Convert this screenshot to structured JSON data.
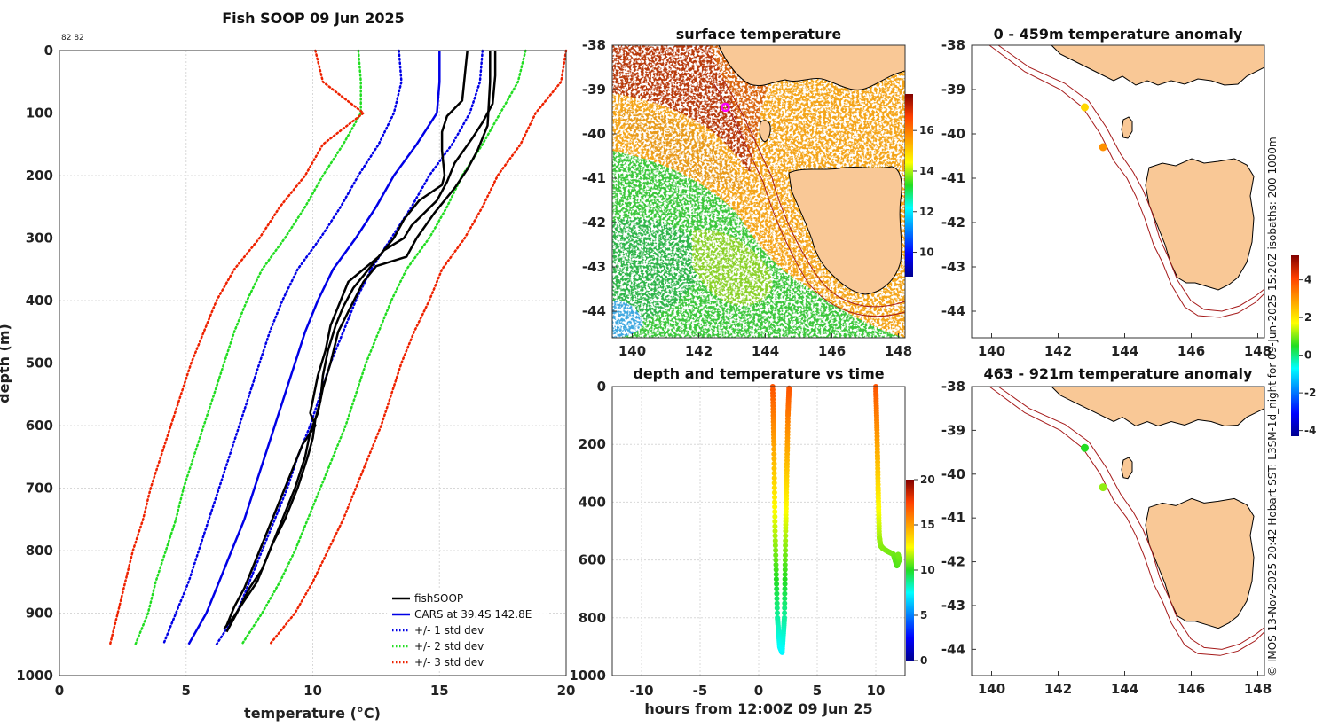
{
  "side_text": "© IMOS 13-Nov-2025 20:42 Hobart SST: L3SM-1d_night for 09-Jun-2025 15:20Z isobaths: 200  1000m",
  "chart_data": [
    {
      "id": "profile",
      "type": "line",
      "title": "Fish SOOP 09 Jun 2025",
      "annotation": "82 82",
      "xlabel": "temperature (°C)",
      "ylabel": "depth (m)",
      "xlim": [
        0,
        20
      ],
      "ylim": [
        0,
        1000
      ],
      "y_reversed": true,
      "x_ticks": [
        "0",
        "5",
        "10",
        "15",
        "20"
      ],
      "y_ticks": [
        "0",
        "100",
        "200",
        "300",
        "400",
        "500",
        "600",
        "700",
        "800",
        "900",
        "1000"
      ],
      "legend_position": "bottom-right",
      "depth": [
        0,
        50,
        100,
        150,
        200,
        250,
        300,
        350,
        400,
        450,
        500,
        550,
        600,
        650,
        700,
        750,
        800,
        850,
        900,
        950
      ],
      "series": [
        {
          "name": "CARS at 39.4S 142.8E",
          "legend": "CARS at 39.4S 142.8E",
          "color": "#0000e6",
          "style": "solid",
          "values": [
            15.0,
            15.0,
            14.9,
            14.1,
            13.2,
            12.5,
            11.7,
            10.8,
            10.2,
            9.7,
            9.3,
            8.9,
            8.5,
            8.1,
            7.7,
            7.3,
            6.8,
            6.3,
            5.8,
            5.1
          ]
        },
        {
          "name": "+1 std dev",
          "legend": "+/- 1 std dev",
          "color": "#0000e6",
          "style": "dotted",
          "values": [
            16.7,
            16.6,
            16.2,
            15.5,
            14.6,
            13.9,
            13.1,
            12.3,
            11.7,
            11.2,
            10.7,
            10.3,
            9.9,
            9.4,
            9.0,
            8.5,
            8.0,
            7.5,
            7.0,
            6.2
          ]
        },
        {
          "name": "-1 std dev",
          "legend": "",
          "color": "#0000e6",
          "style": "dotted",
          "values": [
            13.4,
            13.5,
            13.2,
            12.6,
            11.8,
            11.1,
            10.3,
            9.4,
            8.8,
            8.3,
            7.9,
            7.5,
            7.1,
            6.7,
            6.3,
            5.9,
            5.5,
            5.1,
            4.6,
            4.1
          ]
        },
        {
          "name": "+2 std dev",
          "legend": "+/- 2 std dev",
          "color": "#22dd22",
          "style": "dotted",
          "values": [
            18.4,
            18.1,
            17.4,
            16.7,
            15.9,
            15.3,
            14.6,
            13.7,
            13.1,
            12.6,
            12.1,
            11.7,
            11.3,
            10.8,
            10.3,
            9.8,
            9.3,
            8.7,
            8.0,
            7.2
          ]
        },
        {
          "name": "-2 std dev",
          "legend": "",
          "color": "#22dd22",
          "style": "dotted",
          "values": [
            11.8,
            11.9,
            11.9,
            11.2,
            10.4,
            9.7,
            8.9,
            8.0,
            7.4,
            6.9,
            6.5,
            6.1,
            5.7,
            5.3,
            4.9,
            4.6,
            4.2,
            3.8,
            3.5,
            3.0
          ]
        },
        {
          "name": "+3 std dev",
          "legend": "+/- 3 std dev",
          "color": "#ee2200",
          "style": "dotted",
          "values": [
            20.0,
            19.8,
            18.8,
            18.2,
            17.3,
            16.7,
            16.0,
            15.1,
            14.6,
            14.0,
            13.5,
            13.1,
            12.7,
            12.2,
            11.7,
            11.2,
            10.6,
            10.0,
            9.3,
            8.3
          ]
        },
        {
          "name": "-3 std dev",
          "legend": "",
          "color": "#ee2200",
          "style": "dotted",
          "values": [
            10.1,
            10.4,
            12.0,
            10.4,
            9.7,
            8.7,
            7.9,
            6.9,
            6.2,
            5.7,
            5.2,
            4.8,
            4.4,
            4.0,
            3.6,
            3.3,
            2.9,
            2.6,
            2.3,
            2.0
          ]
        }
      ],
      "fishsoop": {
        "name": "fishSOOP",
        "legend": "fishSOOP",
        "color": "#000000",
        "casts": [
          {
            "t": [
              16.1,
              16.0,
              15.9,
              15.3,
              15.1,
              15.1,
              15.2,
              15.1,
              14.2,
              13.6,
              13.2,
              12.6,
              11.4,
              11.1,
              10.7,
              10.5,
              10.2,
              10.0,
              9.9,
              10.1,
              9.6,
              9.1,
              8.6,
              8.1,
              7.7,
              7.3,
              6.9,
              6.6
            ],
            "d": [
              0,
              40,
              80,
              105,
              130,
              160,
              200,
              215,
              240,
              270,
              300,
              330,
              370,
              400,
              440,
              480,
              520,
              560,
              580,
              600,
              630,
              680,
              730,
              780,
              820,
              860,
              890,
              920
            ]
          },
          {
            "t": [
              17.2,
              17.2,
              17.1,
              16.7,
              16.3,
              15.6,
              15.3,
              14.9,
              13.9,
              13.6,
              12.8,
              12.2,
              11.6,
              11.2,
              10.9,
              10.6,
              10.4,
              10.3,
              10.1,
              10.0,
              9.8,
              9.4,
              8.9,
              8.4,
              8.0,
              7.5,
              7.0,
              6.6
            ],
            "d": [
              0,
              40,
              85,
              115,
              140,
              180,
              210,
              240,
              280,
              300,
              320,
              350,
              380,
              410,
              440,
              480,
              520,
              560,
              590,
              620,
              650,
              700,
              750,
              790,
              830,
              860,
              900,
              930
            ]
          },
          {
            "t": [
              17.0,
              17.0,
              16.9,
              16.5,
              16.1,
              15.6,
              14.8,
              14.1,
              13.7,
              12.5,
              12.0,
              11.5,
              11.0,
              10.7,
              10.4,
              10.2,
              9.9,
              9.7,
              9.3,
              8.8,
              8.3,
              7.8,
              7.3,
              6.9,
              6.5
            ],
            "d": [
              0,
              50,
              120,
              160,
              190,
              220,
              260,
              300,
              330,
              345,
              370,
              410,
              450,
              500,
              540,
              580,
              610,
              650,
              700,
              750,
              800,
              850,
              880,
              905,
              925
            ]
          }
        ]
      }
    },
    {
      "id": "sst",
      "type": "heatmap",
      "title": "surface temperature",
      "xlim": [
        139.4,
        148.2
      ],
      "ylim": [
        -44.6,
        -38
      ],
      "x_ticks": [
        "140",
        "142",
        "144",
        "146",
        "148"
      ],
      "y_ticks": [
        "-38",
        "-39",
        "-40",
        "-41",
        "-42",
        "-43",
        "-44"
      ],
      "colorbar_range": [
        8.8,
        17.8
      ],
      "colorbar_ticks": [
        "10",
        "12",
        "14",
        "16"
      ],
      "position_marker": [
        142.8,
        -39.4
      ]
    },
    {
      "id": "timeseries",
      "type": "scatter",
      "title": "depth and temperature vs time",
      "xlabel": "hours from 12:00Z 09 Jun 25",
      "xlim": [
        -12.5,
        12.5
      ],
      "ylim": [
        0,
        1000
      ],
      "y_reversed": true,
      "x_ticks": [
        "-10",
        "-5",
        "0",
        "5",
        "10"
      ],
      "y_ticks": [
        "0",
        "200",
        "400",
        "600",
        "800",
        "1000"
      ],
      "colorbar_range": [
        0,
        20
      ],
      "colorbar_ticks": [
        "0",
        "5",
        "10",
        "15",
        "20"
      ],
      "casts": [
        {
          "hours": [
            1.2,
            1.3,
            1.4,
            1.6,
            1.8,
            2.0,
            2.2,
            2.3,
            2.4,
            2.5,
            2.6
          ],
          "depth": [
            0,
            200,
            500,
            800,
            900,
            920,
            800,
            500,
            300,
            100,
            0
          ]
        },
        {
          "hours": [
            10.0,
            10.1,
            10.2,
            10.3,
            10.4,
            10.6,
            11.0,
            11.5,
            11.8,
            12.0,
            11.9
          ],
          "depth": [
            0,
            150,
            350,
            520,
            550,
            560,
            570,
            580,
            620,
            600,
            580
          ]
        }
      ]
    },
    {
      "id": "anomaly_upper",
      "type": "scatter",
      "title": "0 - 459m temperature anomaly",
      "xlim": [
        139.4,
        148.2
      ],
      "ylim": [
        -44.6,
        -38
      ],
      "x_ticks": [
        "140",
        "142",
        "144",
        "146",
        "148"
      ],
      "y_ticks": [
        "-38",
        "-39",
        "-40",
        "-41",
        "-42",
        "-43",
        "-44"
      ],
      "points": [
        {
          "lon": 142.8,
          "lat": -39.4,
          "anomaly": 2.2
        },
        {
          "lon": 143.35,
          "lat": -40.3,
          "anomaly": 3.1
        }
      ]
    },
    {
      "id": "anomaly_lower",
      "type": "scatter",
      "title": "463 - 921m temperature anomaly",
      "xlim": [
        139.4,
        148.2
      ],
      "ylim": [
        -44.6,
        -38
      ],
      "x_ticks": [
        "140",
        "142",
        "144",
        "146",
        "148"
      ],
      "y_ticks": [
        "-38",
        "-39",
        "-40",
        "-41",
        "-42",
        "-43",
        "-44"
      ],
      "points": [
        {
          "lon": 142.8,
          "lat": -39.4,
          "anomaly": 0.5
        },
        {
          "lon": 143.35,
          "lat": -40.3,
          "anomaly": 1.1
        }
      ],
      "colorbar_range": [
        -4.3,
        5.3
      ],
      "colorbar_ticks": [
        "-4",
        "-2",
        "0",
        "2",
        "4"
      ]
    }
  ]
}
